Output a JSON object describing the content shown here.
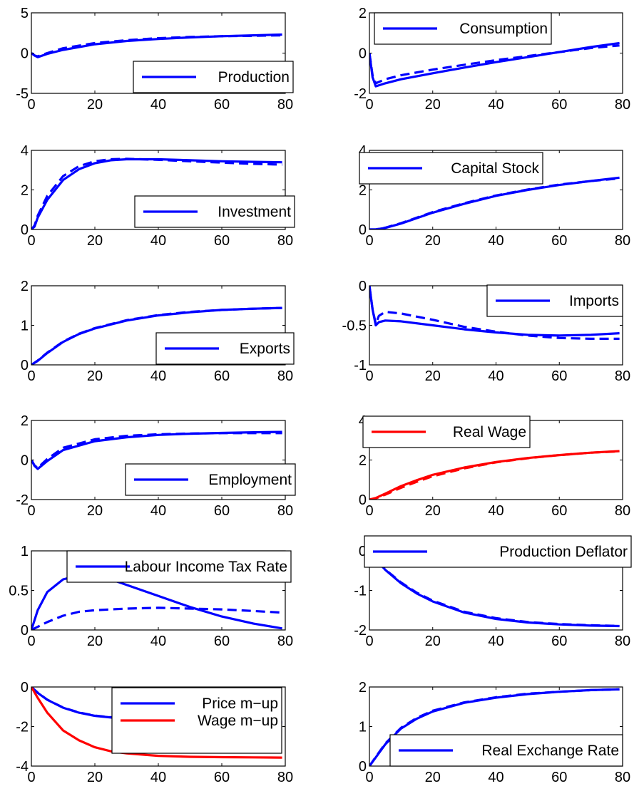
{
  "colors": {
    "blue": "#0000ff",
    "red": "#ff0000",
    "axis": "#000000",
    "background": "#ffffff"
  },
  "chart_data": [
    {
      "type": "line",
      "xlim": [
        0,
        80
      ],
      "ylim": [
        -5,
        5
      ],
      "xticks": [
        "0",
        "20",
        "40",
        "60",
        "80"
      ],
      "yticks": [
        "-5",
        "0",
        "5"
      ],
      "grid": false,
      "legend_position": "bottom-right",
      "series": [
        {
          "name": "Production",
          "style": "solid",
          "color": "#0000ff",
          "x": [
            0,
            1,
            2,
            5,
            10,
            20,
            30,
            40,
            50,
            60,
            70,
            79
          ],
          "y": [
            0,
            -0.3,
            -0.5,
            -0.1,
            0.4,
            1.1,
            1.5,
            1.75,
            1.95,
            2.1,
            2.2,
            2.3
          ]
        },
        {
          "style": "dashed",
          "color": "#0000ff",
          "x": [
            0,
            1,
            2,
            5,
            10,
            20,
            30,
            40,
            50,
            60,
            70,
            79
          ],
          "y": [
            0,
            -0.3,
            -0.4,
            0.0,
            0.6,
            1.25,
            1.6,
            1.85,
            2.0,
            2.1,
            2.15,
            2.2
          ]
        }
      ]
    },
    {
      "type": "line",
      "xlim": [
        0,
        80
      ],
      "ylim": [
        -2,
        2
      ],
      "xticks": [
        "0",
        "20",
        "40",
        "60",
        "80"
      ],
      "yticks": [
        "-2",
        "0",
        "2"
      ],
      "grid": false,
      "legend_position": "top-left",
      "series": [
        {
          "name": "Consumption",
          "style": "solid",
          "color": "#0000ff",
          "x": [
            0,
            1,
            2,
            5,
            10,
            20,
            30,
            40,
            50,
            60,
            70,
            79
          ],
          "y": [
            0,
            -1.2,
            -1.65,
            -1.5,
            -1.3,
            -1.0,
            -0.72,
            -0.45,
            -0.2,
            0.05,
            0.3,
            0.5
          ]
        },
        {
          "style": "dashed",
          "color": "#0000ff",
          "x": [
            0,
            1,
            2,
            5,
            10,
            20,
            30,
            40,
            50,
            60,
            70,
            79
          ],
          "y": [
            0,
            -1.1,
            -1.5,
            -1.3,
            -1.1,
            -0.82,
            -0.58,
            -0.35,
            -0.15,
            0.05,
            0.25,
            0.38
          ]
        }
      ]
    },
    {
      "type": "line",
      "xlim": [
        0,
        80
      ],
      "ylim": [
        0,
        4
      ],
      "xticks": [
        "0",
        "20",
        "40",
        "60",
        "80"
      ],
      "yticks": [
        "0",
        "2",
        "4"
      ],
      "grid": false,
      "legend_position": "bottom-right",
      "series": [
        {
          "name": "Investment",
          "style": "solid",
          "color": "#0000ff",
          "x": [
            0,
            1,
            2,
            5,
            10,
            15,
            20,
            25,
            30,
            40,
            50,
            60,
            70,
            79
          ],
          "y": [
            0,
            0.15,
            0.6,
            1.5,
            2.5,
            3.05,
            3.35,
            3.5,
            3.55,
            3.55,
            3.5,
            3.45,
            3.42,
            3.4
          ]
        },
        {
          "style": "dashed",
          "color": "#0000ff",
          "x": [
            0,
            1,
            2,
            5,
            10,
            15,
            20,
            25,
            30,
            40,
            50,
            60,
            70,
            79
          ],
          "y": [
            0,
            0.2,
            0.7,
            1.7,
            2.7,
            3.2,
            3.45,
            3.55,
            3.57,
            3.52,
            3.45,
            3.38,
            3.32,
            3.28
          ]
        }
      ]
    },
    {
      "type": "line",
      "xlim": [
        0,
        80
      ],
      "ylim": [
        0,
        4
      ],
      "xticks": [
        "0",
        "20",
        "40",
        "60",
        "80"
      ],
      "yticks": [
        "0",
        "2",
        "4"
      ],
      "grid": false,
      "legend_position": "top-left",
      "series": [
        {
          "name": "Capital Stock",
          "style": "solid",
          "color": "#0000ff",
          "x": [
            0,
            2,
            5,
            10,
            20,
            30,
            40,
            50,
            60,
            70,
            79
          ],
          "y": [
            0,
            0.0,
            0.08,
            0.3,
            0.85,
            1.3,
            1.7,
            2.0,
            2.25,
            2.45,
            2.62
          ]
        },
        {
          "style": "dashed",
          "color": "#0000ff",
          "x": [
            0,
            2,
            5,
            10,
            20,
            30,
            40,
            50,
            60,
            70,
            79
          ],
          "y": [
            0,
            0.0,
            0.09,
            0.32,
            0.88,
            1.33,
            1.72,
            2.02,
            2.27,
            2.45,
            2.58
          ]
        }
      ]
    },
    {
      "type": "line",
      "xlim": [
        0,
        80
      ],
      "ylim": [
        0,
        2
      ],
      "xticks": [
        "0",
        "20",
        "40",
        "60",
        "80"
      ],
      "yticks": [
        "0",
        "1",
        "2"
      ],
      "grid": false,
      "legend_position": "bottom-right",
      "series": [
        {
          "name": "Exports",
          "style": "solid",
          "color": "#0000ff",
          "x": [
            0,
            2,
            5,
            10,
            15,
            20,
            30,
            40,
            50,
            60,
            70,
            79
          ],
          "y": [
            0,
            0.1,
            0.3,
            0.58,
            0.78,
            0.92,
            1.12,
            1.25,
            1.33,
            1.39,
            1.42,
            1.44
          ]
        },
        {
          "style": "dashed",
          "color": "#0000ff",
          "x": [
            0,
            2,
            5,
            10,
            15,
            20,
            30,
            40,
            50,
            60,
            70,
            79
          ],
          "y": [
            0,
            0.11,
            0.31,
            0.59,
            0.79,
            0.93,
            1.13,
            1.26,
            1.34,
            1.39,
            1.42,
            1.44
          ]
        }
      ]
    },
    {
      "type": "line",
      "xlim": [
        0,
        80
      ],
      "ylim": [
        -1,
        0
      ],
      "xticks": [
        "0",
        "20",
        "40",
        "60",
        "80"
      ],
      "yticks": [
        "-1",
        "-0.5",
        "0"
      ],
      "grid": false,
      "legend_position": "top-right",
      "series": [
        {
          "name": "Imports",
          "style": "solid",
          "color": "#0000ff",
          "x": [
            0,
            1,
            2,
            3,
            5,
            10,
            20,
            30,
            40,
            50,
            60,
            70,
            79
          ],
          "y": [
            0,
            -0.3,
            -0.5,
            -0.46,
            -0.44,
            -0.45,
            -0.5,
            -0.55,
            -0.59,
            -0.62,
            -0.63,
            -0.62,
            -0.6
          ]
        },
        {
          "style": "dashed",
          "color": "#0000ff",
          "x": [
            0,
            1,
            2,
            3,
            5,
            10,
            20,
            30,
            40,
            50,
            60,
            70,
            79
          ],
          "y": [
            0,
            -0.3,
            -0.48,
            -0.38,
            -0.33,
            -0.35,
            -0.43,
            -0.52,
            -0.58,
            -0.63,
            -0.66,
            -0.67,
            -0.67
          ]
        }
      ]
    },
    {
      "type": "line",
      "xlim": [
        0,
        80
      ],
      "ylim": [
        -2,
        2
      ],
      "xticks": [
        "0",
        "20",
        "40",
        "60",
        "80"
      ],
      "yticks": [
        "-2",
        "0",
        "2"
      ],
      "grid": false,
      "legend_position": "bottom-right",
      "series": [
        {
          "name": "Employment",
          "style": "solid",
          "color": "#0000ff",
          "x": [
            0,
            1,
            2,
            5,
            10,
            20,
            30,
            40,
            50,
            60,
            70,
            79
          ],
          "y": [
            0,
            -0.3,
            -0.45,
            -0.05,
            0.5,
            0.95,
            1.15,
            1.27,
            1.33,
            1.37,
            1.4,
            1.42
          ]
        },
        {
          "style": "dashed",
          "color": "#0000ff",
          "x": [
            0,
            1,
            2,
            5,
            10,
            20,
            30,
            40,
            50,
            60,
            70,
            79
          ],
          "y": [
            0,
            -0.28,
            -0.4,
            0.05,
            0.62,
            1.05,
            1.22,
            1.3,
            1.34,
            1.36,
            1.36,
            1.36
          ]
        }
      ]
    },
    {
      "type": "line",
      "xlim": [
        0,
        80
      ],
      "ylim": [
        0,
        4
      ],
      "xticks": [
        "0",
        "20",
        "40",
        "60",
        "80"
      ],
      "yticks": [
        "0",
        "2",
        "4"
      ],
      "grid": false,
      "legend_position": "top-left",
      "series": [
        {
          "name": "Real Wage",
          "style": "solid",
          "color": "#ff0000",
          "x": [
            0,
            2,
            5,
            10,
            15,
            20,
            30,
            40,
            50,
            60,
            70,
            79
          ],
          "y": [
            0,
            0.08,
            0.3,
            0.68,
            0.98,
            1.25,
            1.62,
            1.9,
            2.1,
            2.25,
            2.37,
            2.45
          ]
        },
        {
          "style": "dashed",
          "color": "#ff0000",
          "x": [
            0,
            2,
            5,
            10,
            15,
            20,
            30,
            40,
            50,
            60,
            70,
            79
          ],
          "y": [
            0,
            0.06,
            0.25,
            0.6,
            0.9,
            1.18,
            1.58,
            1.88,
            2.09,
            2.25,
            2.37,
            2.44
          ]
        }
      ]
    },
    {
      "type": "line",
      "xlim": [
        0,
        80
      ],
      "ylim": [
        0,
        1
      ],
      "xticks": [
        "0",
        "20",
        "40",
        "60",
        "80"
      ],
      "yticks": [
        "0",
        "0.5",
        "1"
      ],
      "grid": false,
      "legend_position": "top",
      "series": [
        {
          "name": "Labour Income Tax Rate",
          "style": "solid",
          "color": "#0000ff",
          "x": [
            0,
            2,
            5,
            10,
            15,
            17,
            20,
            25,
            30,
            40,
            50,
            60,
            70,
            79
          ],
          "y": [
            0,
            0.25,
            0.48,
            0.64,
            0.69,
            0.69,
            0.68,
            0.64,
            0.57,
            0.43,
            0.29,
            0.17,
            0.08,
            0.02
          ]
        },
        {
          "style": "dashed",
          "color": "#0000ff",
          "x": [
            0,
            2,
            5,
            10,
            15,
            20,
            30,
            40,
            50,
            60,
            70,
            79
          ],
          "y": [
            0,
            0.04,
            0.1,
            0.18,
            0.23,
            0.25,
            0.27,
            0.28,
            0.27,
            0.26,
            0.24,
            0.22
          ]
        }
      ]
    },
    {
      "type": "line",
      "xlim": [
        0,
        80
      ],
      "ylim": [
        -2,
        0
      ],
      "xticks": [
        "0",
        "20",
        "40",
        "60",
        "80"
      ],
      "yticks": [
        "-2",
        "-1",
        "0"
      ],
      "grid": false,
      "legend_position": "top-right",
      "series": [
        {
          "name": "Production Deflator",
          "style": "solid",
          "color": "#0000ff",
          "x": [
            0,
            2,
            5,
            10,
            15,
            20,
            30,
            40,
            50,
            60,
            70,
            79
          ],
          "y": [
            0,
            -0.22,
            -0.48,
            -0.82,
            -1.08,
            -1.28,
            -1.56,
            -1.72,
            -1.81,
            -1.86,
            -1.89,
            -1.9
          ]
        },
        {
          "style": "dashed",
          "color": "#0000ff",
          "x": [
            0,
            2,
            5,
            10,
            15,
            20,
            30,
            40,
            50,
            60,
            70,
            79
          ],
          "y": [
            0,
            -0.21,
            -0.47,
            -0.8,
            -1.06,
            -1.26,
            -1.54,
            -1.7,
            -1.8,
            -1.85,
            -1.88,
            -1.9
          ]
        }
      ]
    },
    {
      "type": "line",
      "xlim": [
        0,
        80
      ],
      "ylim": [
        -4,
        0
      ],
      "xticks": [
        "0",
        "20",
        "40",
        "60",
        "80"
      ],
      "yticks": [
        "-4",
        "-2",
        "0"
      ],
      "grid": false,
      "legend_position": "top-right",
      "series": [
        {
          "name": "Price m−up",
          "style": "solid",
          "color": "#0000ff",
          "x": [
            0,
            2,
            5,
            10,
            15,
            20,
            30,
            40,
            50,
            60,
            70,
            79
          ],
          "y": [
            0,
            -0.3,
            -0.65,
            -1.05,
            -1.3,
            -1.46,
            -1.62,
            -1.7,
            -1.75,
            -1.78,
            -1.79,
            -1.8
          ]
        },
        {
          "style": "dashed",
          "color": "#0000ff",
          "x": [
            0,
            2,
            5,
            10,
            15,
            20,
            30,
            40,
            50,
            60,
            70,
            79
          ],
          "y": [
            0,
            -0.29,
            -0.64,
            -1.04,
            -1.29,
            -1.45,
            -1.61,
            -1.69,
            -1.74,
            -1.77,
            -1.78,
            -1.79
          ]
        },
        {
          "name": "Wage m−up",
          "style": "solid",
          "color": "#ff0000",
          "x": [
            0,
            2,
            5,
            10,
            15,
            20,
            25,
            30,
            40,
            50,
            60,
            70,
            79
          ],
          "y": [
            0,
            -0.55,
            -1.3,
            -2.2,
            -2.7,
            -3.05,
            -3.25,
            -3.36,
            -3.48,
            -3.53,
            -3.55,
            -3.56,
            -3.57
          ]
        }
      ]
    },
    {
      "type": "line",
      "xlim": [
        0,
        80
      ],
      "ylim": [
        0,
        2
      ],
      "xticks": [
        "0",
        "20",
        "40",
        "60",
        "80"
      ],
      "yticks": [
        "0",
        "1",
        "2"
      ],
      "grid": false,
      "legend_position": "bottom-right",
      "series": [
        {
          "name": "Real Exchange Rate",
          "style": "solid",
          "color": "#0000ff",
          "x": [
            0,
            2,
            5,
            10,
            15,
            20,
            30,
            40,
            50,
            60,
            70,
            79
          ],
          "y": [
            0,
            0.22,
            0.55,
            0.95,
            1.2,
            1.38,
            1.6,
            1.73,
            1.82,
            1.88,
            1.92,
            1.94
          ]
        },
        {
          "style": "dashed",
          "color": "#0000ff",
          "x": [
            0,
            2,
            5,
            10,
            15,
            20,
            30,
            40,
            50,
            60,
            70,
            79
          ],
          "y": [
            0,
            0.23,
            0.57,
            0.97,
            1.22,
            1.4,
            1.61,
            1.74,
            1.83,
            1.88,
            1.92,
            1.94
          ]
        }
      ]
    }
  ]
}
